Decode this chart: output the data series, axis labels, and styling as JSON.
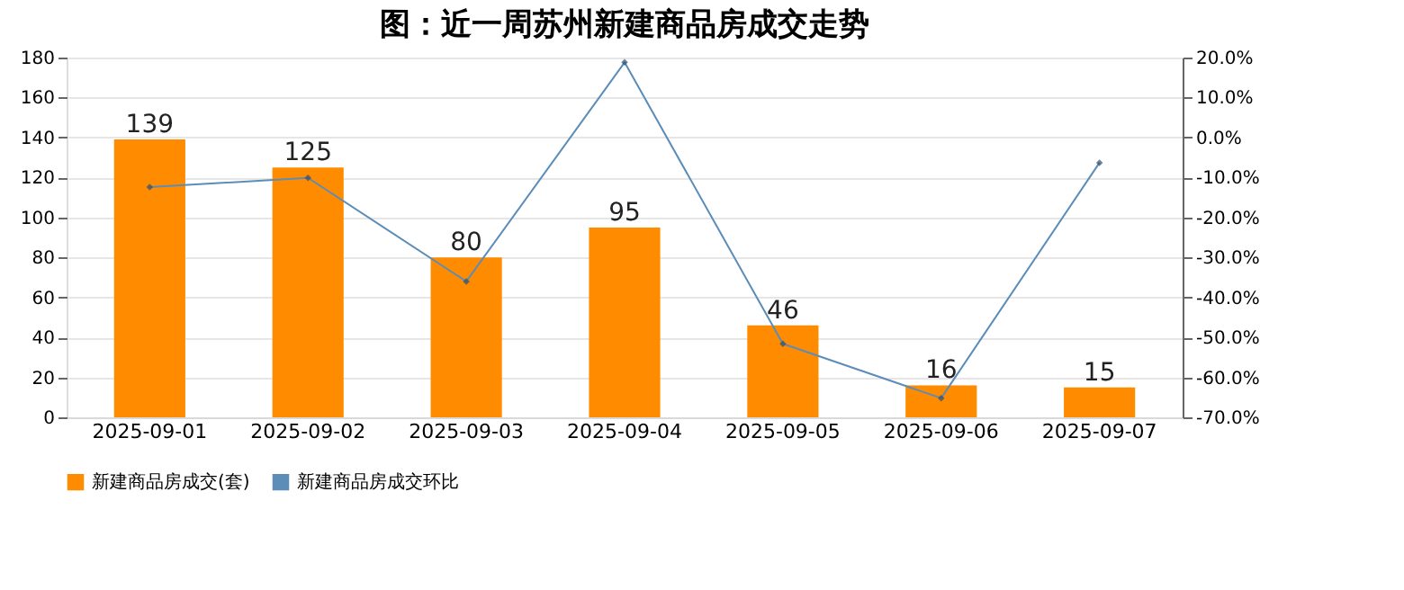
{
  "chart_data": {
    "type": "bar",
    "title": "图：近一周苏州新建商品房成交走势",
    "categories": [
      "2025-09-01",
      "2025-09-02",
      "2025-09-03",
      "2025-09-04",
      "2025-09-05",
      "2025-09-06",
      "2025-09-07"
    ],
    "series": [
      {
        "name": "新建商品房成交(套)",
        "color": "#ff8c00",
        "values": [
          139,
          125,
          80,
          95,
          46,
          16,
          15
        ],
        "value_labels": [
          "139",
          "125",
          "80",
          "95",
          "46",
          "16",
          "15"
        ]
      },
      {
        "name": "新建商品房成交环比",
        "type": "line",
        "axis": "y2",
        "color": "#5b8db8",
        "values": [
          -12.4,
          -10.1,
          -36.0,
          18.8,
          -51.6,
          -65.2,
          -6.3
        ]
      }
    ],
    "ylim": [
      0,
      180
    ],
    "yticks": [
      0,
      20,
      40,
      60,
      80,
      100,
      120,
      140,
      160,
      180
    ],
    "y2lim": [
      -70,
      20
    ],
    "y2ticks": [
      {
        "value": -70,
        "label": "-70.0%"
      },
      {
        "value": -60,
        "label": "-60.0%"
      },
      {
        "value": -50,
        "label": "-50.0%"
      },
      {
        "value": -40,
        "label": "-40.0%"
      },
      {
        "value": -30,
        "label": "-30.0%"
      },
      {
        "value": -20,
        "label": "-20.0%"
      },
      {
        "value": -10,
        "label": "-10.0%"
      },
      {
        "value": 0,
        "label": "0.0%"
      },
      {
        "value": 10,
        "label": "10.0%"
      },
      {
        "value": 20,
        "label": "20.0%"
      }
    ],
    "grid": "y",
    "legend": "bottom",
    "marker": "diamond",
    "line_style": "solid"
  }
}
